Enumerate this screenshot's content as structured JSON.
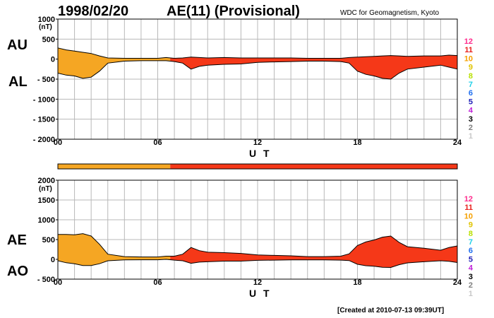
{
  "header": {
    "date": "1998/02/20",
    "title": "AE(11) (Provisional)",
    "source": "WDC for Geomagnetism, Kyoto"
  },
  "footer": {
    "created": "[Created at 2010-07-13 09:39UT]"
  },
  "colors": {
    "orange": "#f5a623",
    "red": "#f53818",
    "grid": "#b8b8b8"
  },
  "legend_station_counts": [
    {
      "label": "12",
      "color": "#ff2a8c"
    },
    {
      "label": "11",
      "color": "#e8201c"
    },
    {
      "label": "10",
      "color": "#f5a000"
    },
    {
      "label": "9",
      "color": "#e0c400"
    },
    {
      "label": "8",
      "color": "#b8e000"
    },
    {
      "label": "7",
      "color": "#20d0e8"
    },
    {
      "label": "6",
      "color": "#2070f0"
    },
    {
      "label": "5",
      "color": "#2020b8"
    },
    {
      "label": "4",
      "color": "#c020d8"
    },
    {
      "label": "3",
      "color": "#000000"
    },
    {
      "label": "2",
      "color": "#808080"
    },
    {
      "label": "1",
      "color": "#c8c8c8"
    }
  ],
  "chart_data": [
    {
      "type": "area",
      "panel": "upper",
      "labels": {
        "upper": "AU",
        "lower": "AL"
      },
      "unit": "(nT)",
      "xlabel": "U T",
      "xlim": [
        0,
        24
      ],
      "x_ticks": [
        "00",
        "06",
        "12",
        "18",
        "24"
      ],
      "ylim": [
        -2000,
        1000
      ],
      "y_ticks": [
        "1000",
        "500",
        "0",
        "- 500",
        "- 1000",
        "- 1500",
        "- 2000"
      ],
      "grid": true,
      "x": [
        0,
        0.5,
        1,
        1.5,
        2,
        2.5,
        3,
        4,
        5,
        6,
        6.5,
        7,
        7.5,
        8,
        8.5,
        9,
        10,
        11,
        12,
        13,
        14,
        15,
        16,
        17,
        17.5,
        18,
        18.5,
        19,
        19.5,
        20,
        20.5,
        21,
        22,
        23,
        23.5,
        24
      ],
      "series": [
        {
          "name": "AU",
          "values": [
            280,
            230,
            200,
            170,
            140,
            80,
            30,
            20,
            20,
            20,
            40,
            20,
            30,
            50,
            40,
            30,
            40,
            30,
            30,
            30,
            30,
            20,
            20,
            20,
            40,
            50,
            60,
            70,
            80,
            90,
            80,
            70,
            80,
            80,
            100,
            90
          ]
        },
        {
          "name": "AL",
          "values": [
            -350,
            -400,
            -420,
            -480,
            -450,
            -300,
            -100,
            -50,
            -40,
            -40,
            -40,
            -60,
            -100,
            -250,
            -180,
            -150,
            -130,
            -120,
            -80,
            -70,
            -60,
            -50,
            -50,
            -60,
            -100,
            -300,
            -380,
            -420,
            -480,
            -500,
            -350,
            -250,
            -200,
            -150,
            -200,
            -250
          ]
        }
      ]
    },
    {
      "type": "area",
      "panel": "lower",
      "labels": {
        "upper": "AE",
        "lower": "AO"
      },
      "unit": "(nT)",
      "xlabel": "U T",
      "xlim": [
        0,
        24
      ],
      "x_ticks": [
        "00",
        "06",
        "12",
        "18",
        "24"
      ],
      "ylim": [
        -500,
        2000
      ],
      "y_ticks": [
        "2000",
        "1500",
        "1000",
        "500",
        "0",
        "- 500"
      ],
      "grid": true,
      "x": [
        0,
        0.5,
        1,
        1.5,
        2,
        2.5,
        3,
        4,
        5,
        6,
        6.5,
        7,
        7.5,
        8,
        8.5,
        9,
        10,
        11,
        12,
        13,
        14,
        15,
        16,
        17,
        17.5,
        18,
        18.5,
        19,
        19.5,
        20,
        20.5,
        21,
        22,
        23,
        23.5,
        24
      ],
      "series": [
        {
          "name": "AE",
          "values": [
            630,
            630,
            620,
            650,
            590,
            380,
            130,
            70,
            60,
            60,
            80,
            80,
            130,
            300,
            220,
            180,
            170,
            150,
            110,
            100,
            90,
            70,
            70,
            80,
            140,
            350,
            440,
            490,
            560,
            590,
            430,
            320,
            280,
            230,
            300,
            340
          ]
        },
        {
          "name": "AO",
          "values": [
            -35,
            -85,
            -110,
            -155,
            -155,
            -110,
            -35,
            -15,
            -10,
            -10,
            0,
            -20,
            -35,
            -100,
            -70,
            -60,
            -45,
            -45,
            -25,
            -20,
            -15,
            -15,
            -15,
            -20,
            -30,
            -125,
            -160,
            -175,
            -200,
            -205,
            -135,
            -90,
            -60,
            -35,
            -50,
            -80
          ]
        }
      ]
    }
  ],
  "station_bar": {
    "segments": [
      {
        "from": 0,
        "to": 6.75,
        "level": "10"
      },
      {
        "from": 6.75,
        "to": 24,
        "level": "11"
      }
    ]
  }
}
